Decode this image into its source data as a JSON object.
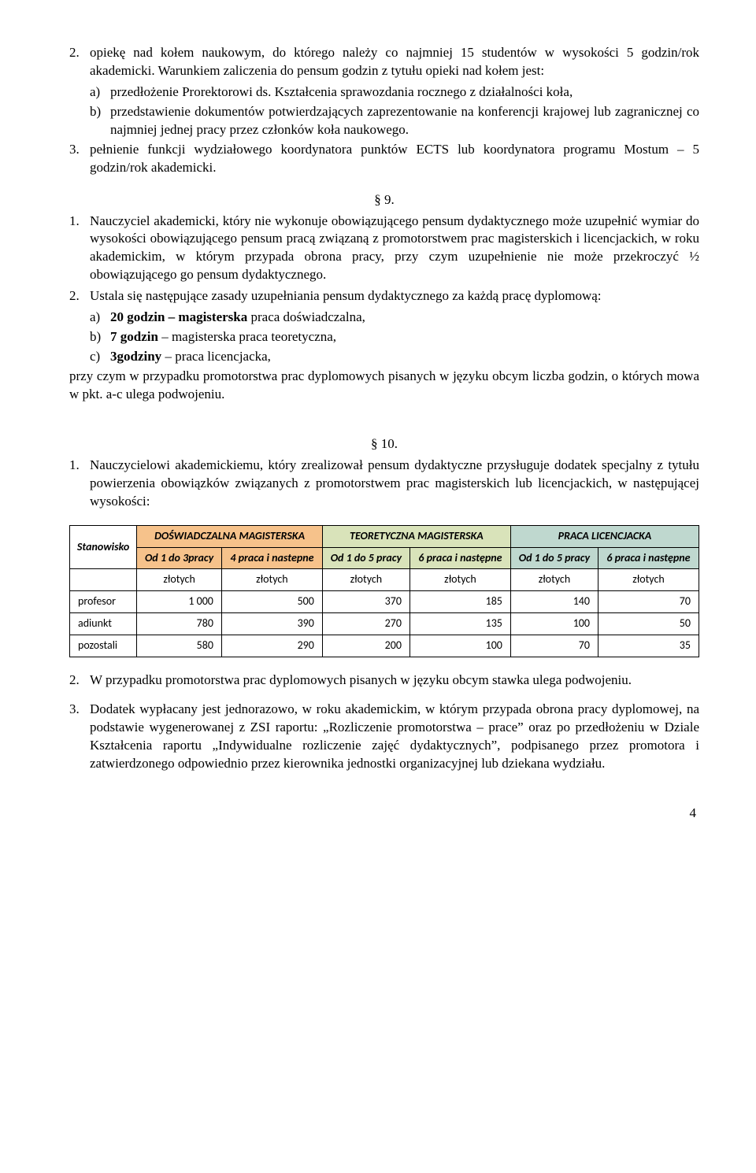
{
  "p2": {
    "num": "2.",
    "text": "opiekę nad kołem naukowym, do którego należy co najmniej 15 studentów w wysokości 5 godzin/rok akademicki. Warunkiem zaliczenia do pensum godzin z tytułu opieki nad kołem jest:"
  },
  "p2a": {
    "num": "a)",
    "text": "przedłożenie Prorektorowi ds. Kształcenia sprawozdania rocznego z działalności koła,"
  },
  "p2b": {
    "num": "b)",
    "text": "przedstawienie dokumentów potwierdzających zaprezentowanie na konferencji krajowej lub zagranicznej co najmniej jednej pracy przez członków koła naukowego."
  },
  "p3": {
    "num": "3.",
    "text": "pełnienie funkcji wydziałowego koordynatora punktów ECTS lub koordynatora programu Mostum  – 5 godzin/rok akademicki."
  },
  "sec9": "§ 9.",
  "s9_1": {
    "num": "1.",
    "text": "Nauczyciel akademicki, który nie wykonuje obowiązującego pensum dydaktycznego może uzupełnić wymiar do wysokości obowiązującego pensum pracą związaną z promotorstwem prac magisterskich i licencjackich, w roku akademickim, w którym przypada obrona pracy, przy czym uzupełnienie nie może przekroczyć ½ obowiązującego go pensum dydaktycznego."
  },
  "s9_2": {
    "num": "2.",
    "text": "Ustala się następujące zasady uzupełniania pensum dydaktycznego za każdą pracę dyplomową:"
  },
  "s9_2a": {
    "num": "a)",
    "bold": "20 godzin – magisterska",
    "rest": " praca doświadczalna,"
  },
  "s9_2b": {
    "num": "b)",
    "bold": "7 godzin",
    "rest": " – magisterska praca teoretyczna,"
  },
  "s9_2c": {
    "num": "c)",
    "bold": "3godziny",
    "rest": " – praca licencjacka,"
  },
  "s9_tail": "przy czym w przypadku promotorstwa prac dyplomowych pisanych w języku obcym liczba godzin, o których mowa w pkt. a-c ulega podwojeniu.",
  "sec10": "§ 10.",
  "s10_1": {
    "num": "1.",
    "text": "Nauczycielowi akademickiemu, który zrealizował pensum dydaktyczne przysługuje dodatek specjalny z tytułu powierzenia obowiązków związanych z promotorstwem prac magisterskich lub licencjackich, w następującej wysokości:"
  },
  "table": {
    "header": {
      "stanowisko": "Stanowisko",
      "groups": [
        {
          "label": "DOŚWIADCZALNA MAGISTERSKA",
          "bg": "#f6c28b",
          "subs": [
            {
              "label": "Od 1 do 3pracy"
            },
            {
              "label": "4 praca i nastepne"
            }
          ]
        },
        {
          "label": "TEORETYCZNA MAGISTERSKA",
          "bg": "#d9e3ba",
          "subs": [
            {
              "label": "Od 1 do 5 pracy"
            },
            {
              "label": "6  praca i następne"
            }
          ]
        },
        {
          "label": "PRACA LICENCJACKA",
          "bg": "#bfd8cf",
          "subs": [
            {
              "label": "Od 1 do 5 pracy"
            },
            {
              "label": "6  praca i następne"
            }
          ]
        }
      ]
    },
    "unit": "złotych",
    "rows": [
      {
        "label": "profesor",
        "vals": [
          "1 000",
          "500",
          "370",
          "185",
          "140",
          "70"
        ]
      },
      {
        "label": "adiunkt",
        "vals": [
          "780",
          "390",
          "270",
          "135",
          "100",
          "50"
        ]
      },
      {
        "label": "pozostali",
        "vals": [
          "580",
          "290",
          "200",
          "100",
          "70",
          "35"
        ]
      }
    ]
  },
  "s10_2": {
    "num": "2.",
    "text": "W przypadku promotorstwa prac dyplomowych pisanych w języku obcym stawka ulega podwojeniu."
  },
  "s10_3": {
    "num": "3.",
    "text": "Dodatek wypłacany jest jednorazowo, w roku akademickim, w którym przypada obrona pracy dyplomowej, na podstawie wygenerowanej z ZSI raportu: „Rozliczenie promotorstwa – prace” oraz po przedłożeniu w Dziale Kształcenia raportu „Indywidualne rozliczenie zajęć dydaktycznych”, podpisanego przez promotora i zatwierdzonego odpowiednio przez kierownika jednostki organizacyjnej lub dziekana wydziału."
  },
  "pagenum": "4"
}
